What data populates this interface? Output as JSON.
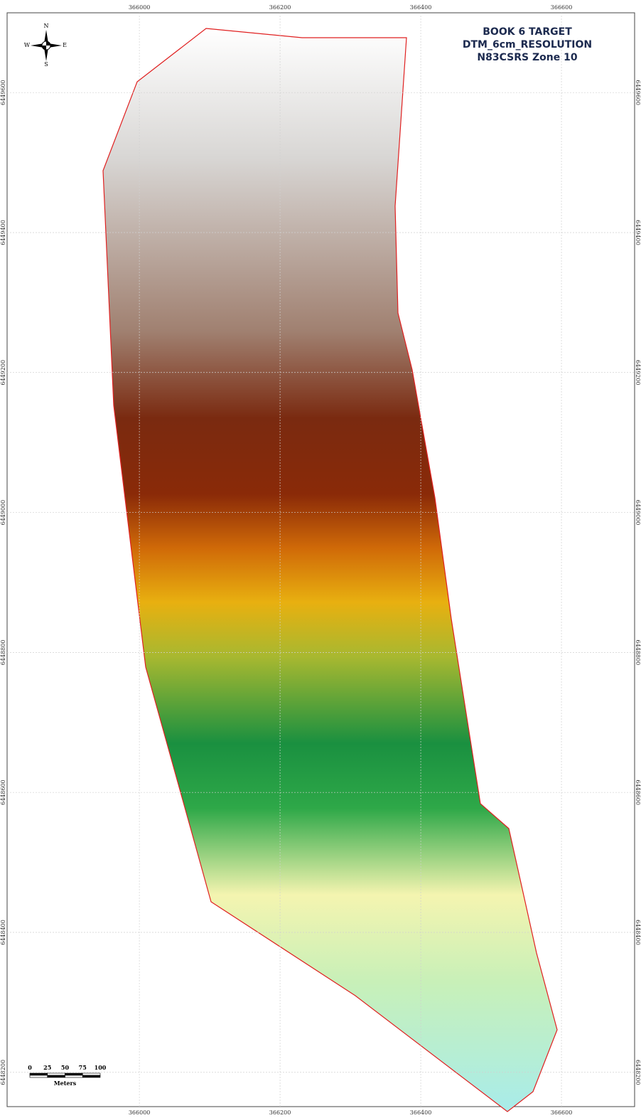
{
  "map": {
    "title": [
      "BOOK 6 TARGET",
      "DTM_6cm_RESOLUTION",
      "N83CSRS Zone 10"
    ],
    "xlim": [
      365812,
      366704
    ],
    "ylim": [
      6448151,
      6449714
    ],
    "xticks": [
      366000,
      366200,
      366400,
      366600
    ],
    "yticks": [
      6449600,
      6449400,
      6449200,
      6449000,
      6448800,
      6448600,
      6448400,
      6448200
    ],
    "compass": {
      "north": "N",
      "south": "S",
      "east": "E",
      "west": "W"
    },
    "scale_bar": {
      "ticks": [
        0,
        25,
        50,
        75,
        100
      ],
      "unit": "Meters"
    }
  }
}
